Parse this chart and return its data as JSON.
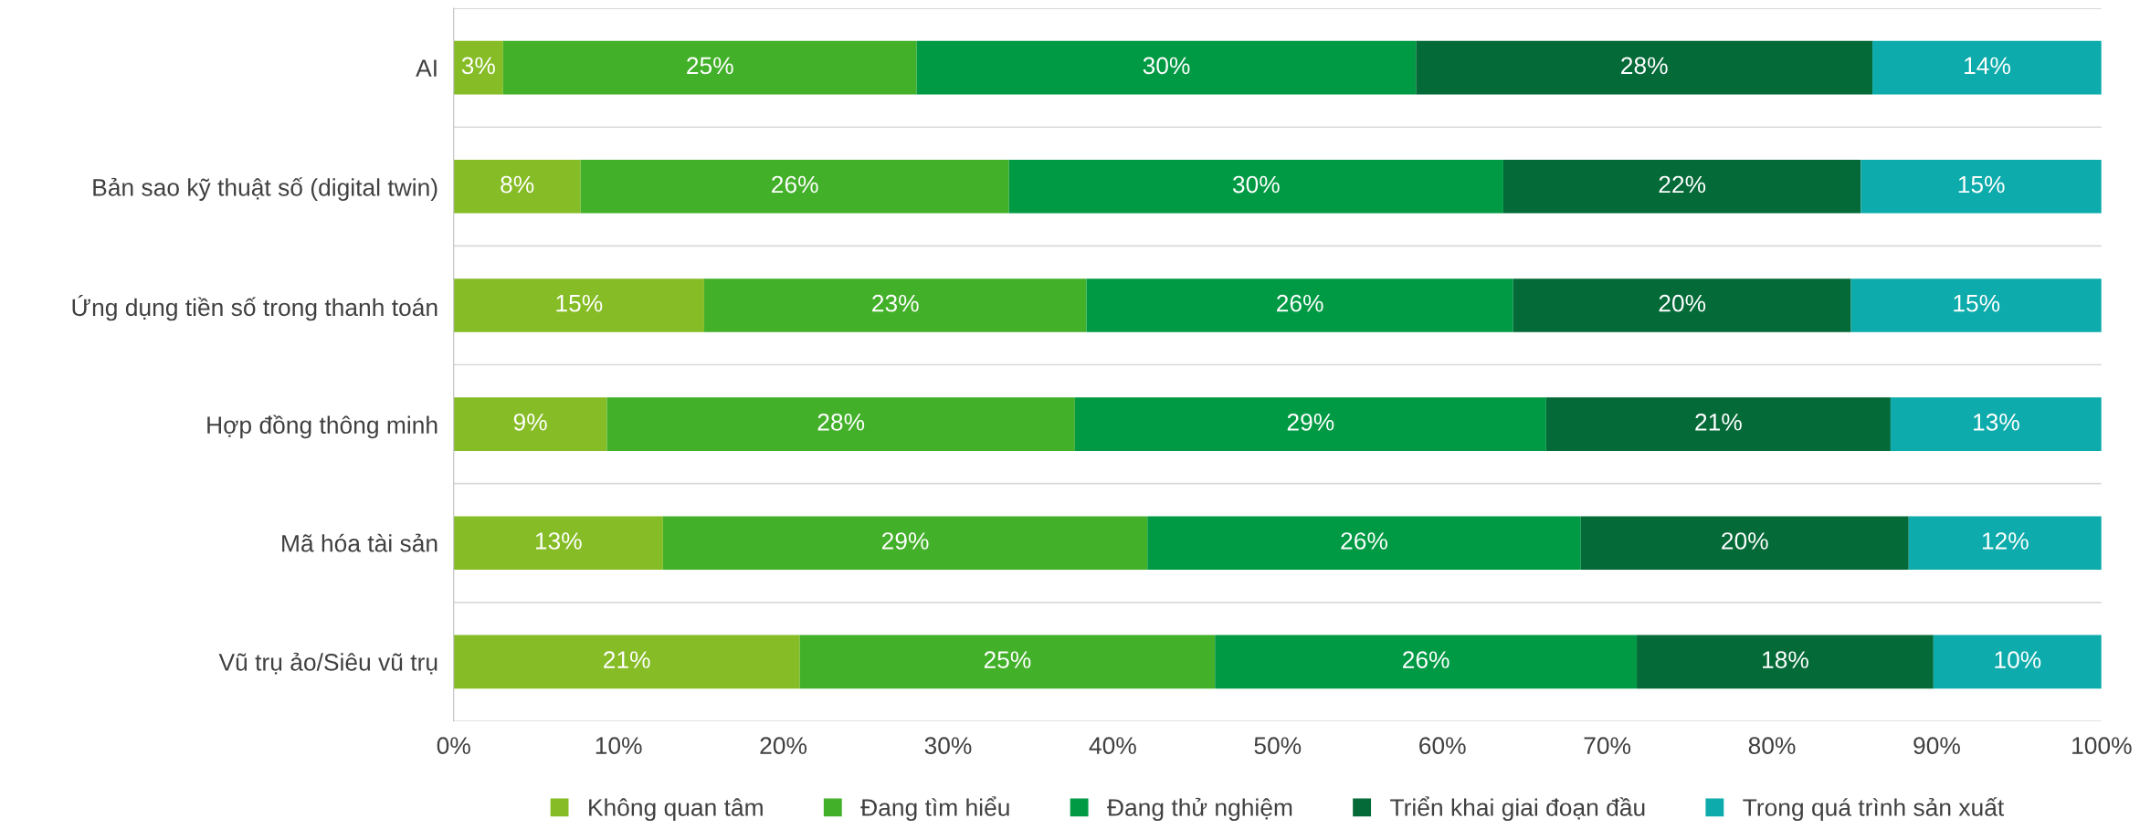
{
  "chart_data": {
    "type": "bar",
    "orientation": "horizontal",
    "stacked": true,
    "categories": [
      "AI",
      "Bản sao kỹ thuật số (digital twin)",
      "Ứng dụng tiền số trong thanh toán",
      "Hợp đồng thông minh",
      "Mã hóa tài sản",
      "Vũ trụ ảo/Siêu vũ trụ"
    ],
    "series": [
      {
        "name": "Không quan tâm",
        "color": "#86bc25",
        "values": [
          3.0,
          7.7,
          15.2,
          9.3,
          12.7,
          21.0
        ],
        "value_labels": [
          "3%",
          "8%",
          "15%",
          "9%",
          "13%",
          "21%"
        ]
      },
      {
        "name": "Đang tìm hiểu",
        "color": "#43b02a",
        "values": [
          25.1,
          26.0,
          23.2,
          28.4,
          29.4,
          25.2
        ],
        "value_labels": [
          "25%",
          "26%",
          "23%",
          "28%",
          "29%",
          "25%"
        ]
      },
      {
        "name": "Đang thử nghiệm",
        "color": "#009a44",
        "values": [
          30.3,
          30.0,
          25.9,
          28.6,
          26.3,
          25.6
        ],
        "value_labels": [
          "30%",
          "30%",
          "26%",
          "29%",
          "26%",
          "26%"
        ]
      },
      {
        "name": "Triển khai giai đoạn đầu",
        "color": "#046a38",
        "values": [
          27.7,
          21.7,
          20.5,
          20.9,
          19.9,
          18.0
        ],
        "value_labels": [
          "28%",
          "22%",
          "20%",
          "21%",
          "20%",
          "18%"
        ]
      },
      {
        "name": "Trong quá trình sản xuất",
        "color": "#0dabab",
        "values": [
          13.9,
          14.6,
          15.2,
          12.8,
          11.7,
          10.2
        ],
        "value_labels": [
          "14%",
          "15%",
          "15%",
          "13%",
          "12%",
          "10%"
        ]
      }
    ],
    "xlim": [
      0,
      100
    ],
    "xticks": [
      {
        "value": 0,
        "label": "0%"
      },
      {
        "value": 10,
        "label": "10%"
      },
      {
        "value": 20,
        "label": "20%"
      },
      {
        "value": 30,
        "label": "30%"
      },
      {
        "value": 40,
        "label": "40%"
      },
      {
        "value": 50,
        "label": "50%"
      },
      {
        "value": 60,
        "label": "60%"
      },
      {
        "value": 70,
        "label": "70%"
      },
      {
        "value": 80,
        "label": "80%"
      },
      {
        "value": 90,
        "label": "90%"
      },
      {
        "value": 100,
        "label": "100%"
      }
    ],
    "grid": "y",
    "legend": "bottom"
  }
}
